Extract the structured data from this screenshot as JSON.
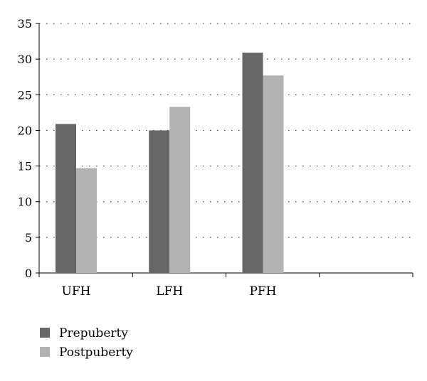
{
  "chart_data": {
    "type": "bar",
    "categories": [
      "UFH",
      "LFH",
      "PFH",
      ""
    ],
    "series": [
      {
        "name": "Prepuberty",
        "values": [
          20.9,
          20.0,
          30.9,
          null
        ],
        "color": "#666666"
      },
      {
        "name": "Postpuberty",
        "values": [
          14.7,
          23.3,
          27.7,
          null
        ],
        "color": "#b2b2b2"
      }
    ],
    "ylim": [
      0,
      35
    ],
    "yticks": [
      0,
      5,
      10,
      15,
      20,
      25,
      30,
      35
    ],
    "ytick_labels": [
      "0",
      "5",
      "10",
      "15",
      "20",
      "25",
      "30",
      "35"
    ],
    "grid": "dotted horizontal",
    "legend_position": "bottom-left",
    "title": "",
    "xlabel": "",
    "ylabel": ""
  }
}
